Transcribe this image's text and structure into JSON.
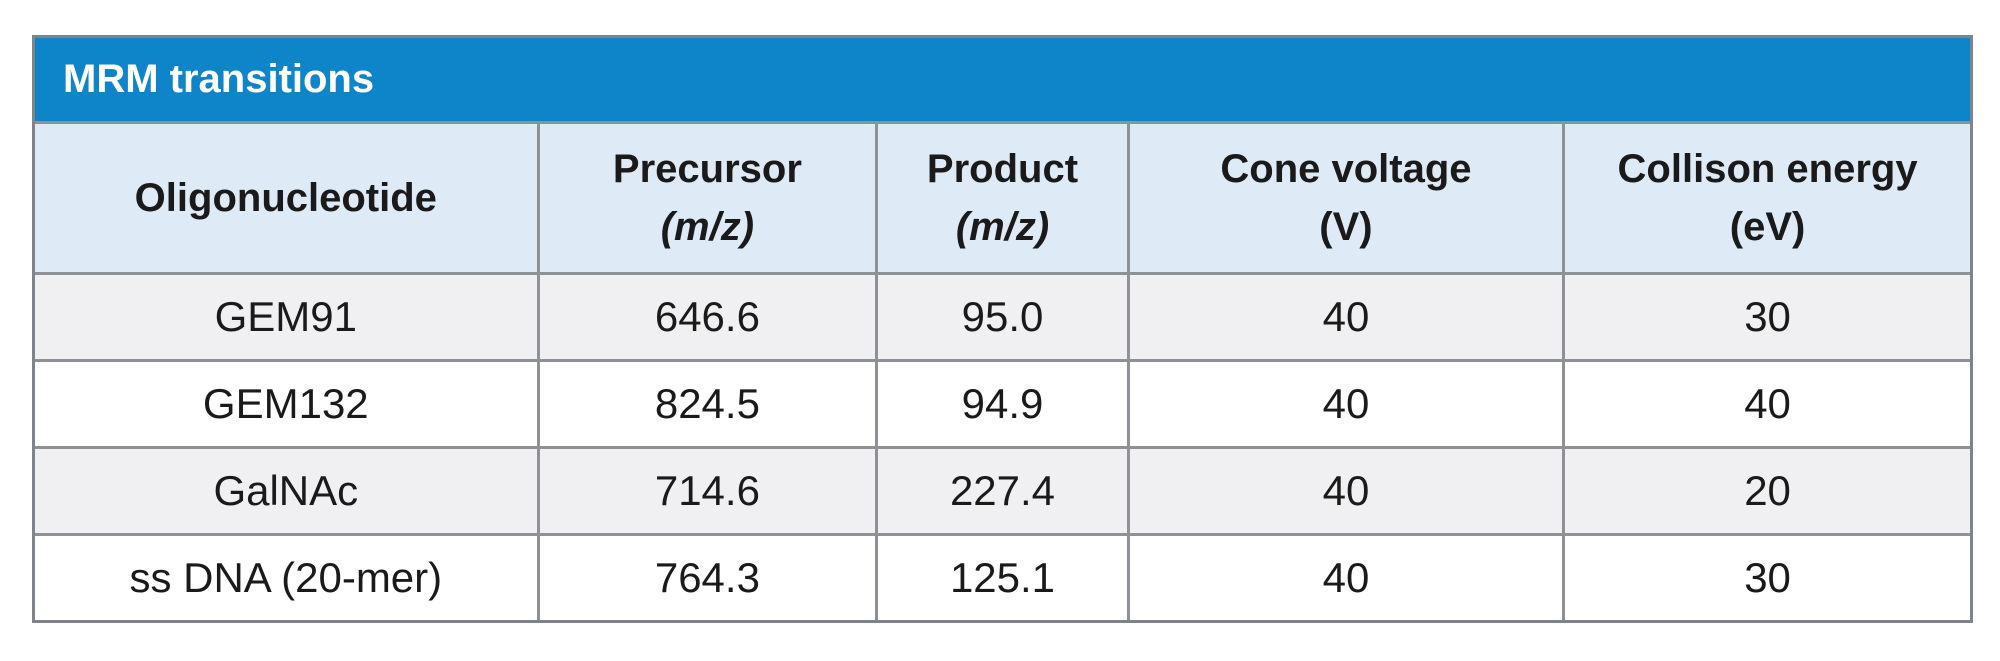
{
  "table": {
    "title": "MRM transitions",
    "columns": [
      {
        "label": "Oligonucleotide",
        "unit": ""
      },
      {
        "label": "Precursor",
        "unit": "(m/z)"
      },
      {
        "label": "Product",
        "unit": "(m/z)"
      },
      {
        "label": "Cone voltage",
        "unit": "(V)"
      },
      {
        "label": "Collison energy",
        "unit": "(eV)"
      }
    ],
    "rows": [
      [
        "GEM91",
        "646.6",
        "95.0",
        "40",
        "30"
      ],
      [
        "GEM132",
        "824.5",
        "94.9",
        "40",
        "40"
      ],
      [
        "GalNAc",
        "714.6",
        "227.4",
        "40",
        "20"
      ],
      [
        "ss DNA (20-mer)",
        "764.3",
        "125.1",
        "40",
        "30"
      ]
    ],
    "colors": {
      "title_bar": "#0d85c8",
      "title_text": "#ffffff",
      "header_bg": "#dfeaf7",
      "row_odd_bg": "#f0f0f2",
      "row_even_bg": "#ffffff",
      "grid_border": "#8e9196",
      "outer_border": "#7f838a"
    }
  },
  "chart_data": {
    "type": "table",
    "title": "MRM transitions",
    "columns": [
      "Oligonucleotide",
      "Precursor (m/z)",
      "Product (m/z)",
      "Cone voltage (V)",
      "Collison energy (eV)"
    ],
    "rows": [
      [
        "GEM91",
        646.6,
        95.0,
        40,
        30
      ],
      [
        "GEM132",
        824.5,
        94.9,
        40,
        40
      ],
      [
        "GalNAc",
        714.6,
        227.4,
        40,
        20
      ],
      [
        "ss DNA (20-mer)",
        764.3,
        125.1,
        40,
        30
      ]
    ]
  }
}
